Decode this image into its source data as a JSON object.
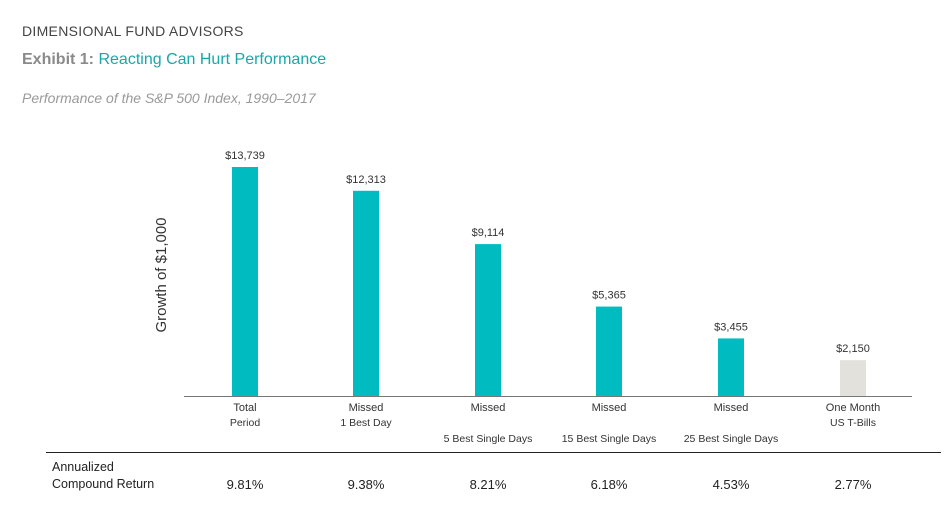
{
  "header": {
    "brand": "DIMENSIONAL FUND ADVISORS",
    "exhibit_label": "Exhibit 1:",
    "exhibit_title": "Reacting Can Hurt Performance",
    "subtitle": "Performance of the S&P 500 Index, 1990–2017"
  },
  "chart_data": {
    "type": "bar",
    "ylabel": "Growth of $1,000",
    "ylim": [
      0,
      15000
    ],
    "categories": [
      [
        "Total",
        "Period"
      ],
      [
        "Missed",
        "1 Best Day"
      ],
      [
        "Missed",
        "5 Best Single Days"
      ],
      [
        "Missed",
        "15 Best Single Days"
      ],
      [
        "Missed",
        "25 Best Single Days"
      ],
      [
        "One Month",
        "US T-Bills"
      ]
    ],
    "values": [
      13739,
      12313,
      9114,
      5365,
      3455,
      2150
    ],
    "value_labels": [
      "$13,739",
      "$12,313",
      "$9,114",
      "$5,365",
      "$3,455",
      "$2,150"
    ],
    "colors": [
      "#00bcc0",
      "#00bcc0",
      "#00bcc0",
      "#00bcc0",
      "#00bcc0",
      "#e2e1dc"
    ],
    "grid": false,
    "legend": "none"
  },
  "returns": {
    "label_line1": "Annualized",
    "label_line2": "Compound Return",
    "values": [
      "9.81%",
      "9.38%",
      "8.21%",
      "6.18%",
      "4.53%",
      "2.77%"
    ]
  }
}
